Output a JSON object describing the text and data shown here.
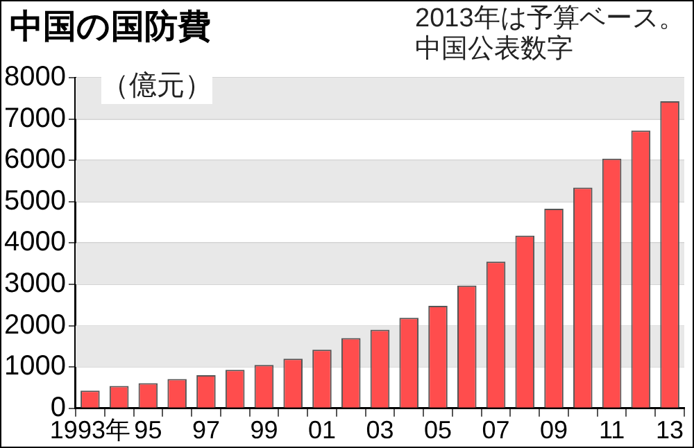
{
  "chart_data": {
    "type": "bar",
    "title": "中国の国防費",
    "ylabel": "（億元）",
    "annotations": [
      "2013年は予算ベース。中国公表数字"
    ],
    "categories": [
      "1993年",
      null,
      "95",
      null,
      "97",
      null,
      "99",
      null,
      "01",
      null,
      "03",
      null,
      "05",
      null,
      "07",
      null,
      "09",
      null,
      "11",
      null,
      "13"
    ],
    "values": [
      430,
      540,
      610,
      710,
      800,
      930,
      1050,
      1200,
      1420,
      1700,
      1900,
      2190,
      2480,
      2970,
      3550,
      4180,
      4830,
      5340,
      6040,
      6720,
      7430
    ],
    "color": "#ff4d4d",
    "ylim": [
      0,
      8000
    ],
    "yticks": [
      0,
      1000,
      2000,
      3000,
      4000,
      5000,
      6000,
      7000,
      8000
    ],
    "grid": "y"
  }
}
